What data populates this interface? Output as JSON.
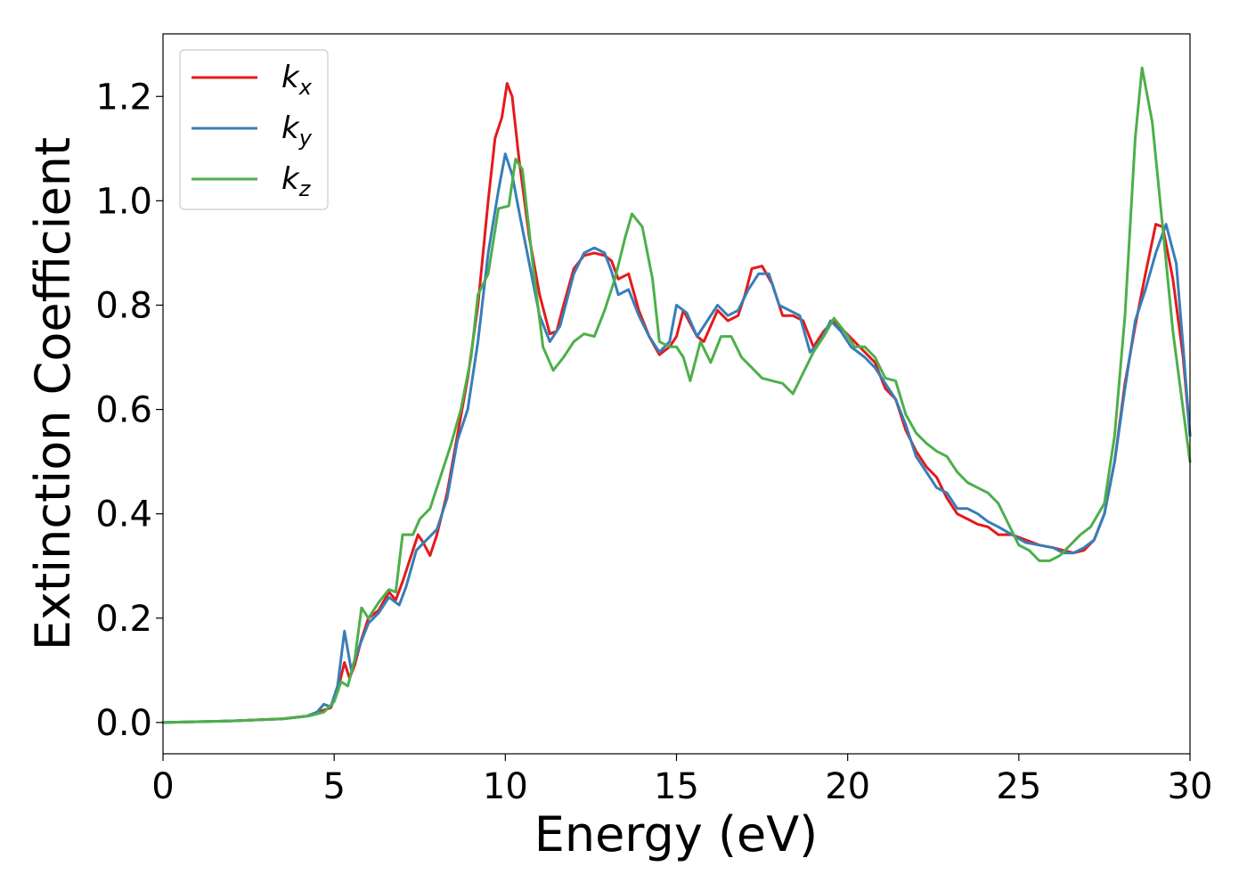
{
  "chart_data": {
    "type": "line",
    "title": "",
    "xlabel": "Energy (eV)",
    "ylabel": "Extinction Coefficient",
    "xlim": [
      0,
      30
    ],
    "ylim": [
      -0.06,
      1.32
    ],
    "xticks": [
      0,
      5,
      10,
      15,
      20,
      25,
      30
    ],
    "xtick_labels": [
      "0",
      "5",
      "10",
      "15",
      "20",
      "25",
      "30"
    ],
    "yticks": [
      0.0,
      0.2,
      0.4,
      0.6,
      0.8,
      1.0,
      1.2
    ],
    "ytick_labels": [
      "0.0",
      "0.2",
      "0.4",
      "0.6",
      "0.8",
      "1.0",
      "1.2"
    ],
    "grid": false,
    "legend_position": "top-left",
    "series": [
      {
        "name": "k",
        "subscript": "x",
        "color": "#e41a1c",
        "points": [
          [
            0,
            0.0
          ],
          [
            2,
            0.003
          ],
          [
            3.5,
            0.007
          ],
          [
            4.2,
            0.012
          ],
          [
            4.6,
            0.022
          ],
          [
            4.9,
            0.028
          ],
          [
            5.1,
            0.06
          ],
          [
            5.3,
            0.115
          ],
          [
            5.45,
            0.085
          ],
          [
            5.6,
            0.11
          ],
          [
            5.8,
            0.16
          ],
          [
            6.0,
            0.2
          ],
          [
            6.3,
            0.215
          ],
          [
            6.6,
            0.25
          ],
          [
            6.8,
            0.235
          ],
          [
            7.0,
            0.27
          ],
          [
            7.2,
            0.31
          ],
          [
            7.45,
            0.36
          ],
          [
            7.6,
            0.345
          ],
          [
            7.8,
            0.32
          ],
          [
            8.0,
            0.36
          ],
          [
            8.3,
            0.44
          ],
          [
            8.6,
            0.55
          ],
          [
            8.9,
            0.66
          ],
          [
            9.2,
            0.8
          ],
          [
            9.5,
            1.0
          ],
          [
            9.7,
            1.12
          ],
          [
            9.9,
            1.16
          ],
          [
            10.05,
            1.225
          ],
          [
            10.2,
            1.2
          ],
          [
            10.4,
            1.08
          ],
          [
            10.7,
            0.93
          ],
          [
            11.0,
            0.82
          ],
          [
            11.3,
            0.745
          ],
          [
            11.5,
            0.75
          ],
          [
            11.7,
            0.8
          ],
          [
            12.0,
            0.87
          ],
          [
            12.3,
            0.895
          ],
          [
            12.6,
            0.9
          ],
          [
            12.9,
            0.895
          ],
          [
            13.1,
            0.885
          ],
          [
            13.3,
            0.85
          ],
          [
            13.6,
            0.86
          ],
          [
            13.9,
            0.79
          ],
          [
            14.2,
            0.74
          ],
          [
            14.5,
            0.705
          ],
          [
            14.8,
            0.72
          ],
          [
            15.0,
            0.74
          ],
          [
            15.2,
            0.79
          ],
          [
            15.4,
            0.765
          ],
          [
            15.6,
            0.74
          ],
          [
            15.8,
            0.73
          ],
          [
            16.0,
            0.76
          ],
          [
            16.2,
            0.79
          ],
          [
            16.5,
            0.77
          ],
          [
            16.8,
            0.78
          ],
          [
            17.0,
            0.82
          ],
          [
            17.2,
            0.87
          ],
          [
            17.5,
            0.875
          ],
          [
            17.8,
            0.84
          ],
          [
            18.1,
            0.78
          ],
          [
            18.4,
            0.78
          ],
          [
            18.7,
            0.77
          ],
          [
            19.0,
            0.72
          ],
          [
            19.3,
            0.75
          ],
          [
            19.6,
            0.77
          ],
          [
            19.9,
            0.75
          ],
          [
            20.2,
            0.73
          ],
          [
            20.5,
            0.71
          ],
          [
            20.8,
            0.69
          ],
          [
            21.1,
            0.64
          ],
          [
            21.4,
            0.62
          ],
          [
            21.7,
            0.56
          ],
          [
            22.0,
            0.52
          ],
          [
            22.3,
            0.49
          ],
          [
            22.6,
            0.47
          ],
          [
            22.9,
            0.43
          ],
          [
            23.2,
            0.4
          ],
          [
            23.5,
            0.39
          ],
          [
            23.8,
            0.38
          ],
          [
            24.1,
            0.375
          ],
          [
            24.4,
            0.36
          ],
          [
            24.8,
            0.36
          ],
          [
            25.2,
            0.35
          ],
          [
            25.6,
            0.34
          ],
          [
            26.0,
            0.335
          ],
          [
            26.3,
            0.33
          ],
          [
            26.6,
            0.325
          ],
          [
            26.9,
            0.33
          ],
          [
            27.2,
            0.35
          ],
          [
            27.5,
            0.4
          ],
          [
            27.8,
            0.5
          ],
          [
            28.1,
            0.65
          ],
          [
            28.4,
            0.76
          ],
          [
            28.7,
            0.86
          ],
          [
            29.0,
            0.955
          ],
          [
            29.2,
            0.95
          ],
          [
            29.5,
            0.85
          ],
          [
            29.8,
            0.7
          ],
          [
            30.0,
            0.55
          ]
        ]
      },
      {
        "name": "k",
        "subscript": "y",
        "color": "#377eb8",
        "points": [
          [
            0,
            0.0
          ],
          [
            2,
            0.003
          ],
          [
            3.5,
            0.007
          ],
          [
            4.2,
            0.012
          ],
          [
            4.5,
            0.02
          ],
          [
            4.7,
            0.035
          ],
          [
            4.9,
            0.03
          ],
          [
            5.1,
            0.07
          ],
          [
            5.3,
            0.175
          ],
          [
            5.5,
            0.1
          ],
          [
            5.7,
            0.14
          ],
          [
            6.0,
            0.19
          ],
          [
            6.3,
            0.21
          ],
          [
            6.6,
            0.24
          ],
          [
            6.9,
            0.225
          ],
          [
            7.1,
            0.26
          ],
          [
            7.4,
            0.33
          ],
          [
            7.7,
            0.35
          ],
          [
            8.0,
            0.37
          ],
          [
            8.3,
            0.43
          ],
          [
            8.6,
            0.54
          ],
          [
            8.9,
            0.6
          ],
          [
            9.2,
            0.73
          ],
          [
            9.5,
            0.9
          ],
          [
            9.8,
            1.02
          ],
          [
            10.0,
            1.09
          ],
          [
            10.2,
            1.05
          ],
          [
            10.4,
            0.98
          ],
          [
            10.7,
            0.88
          ],
          [
            11.0,
            0.78
          ],
          [
            11.3,
            0.73
          ],
          [
            11.6,
            0.76
          ],
          [
            12.0,
            0.86
          ],
          [
            12.3,
            0.9
          ],
          [
            12.6,
            0.91
          ],
          [
            12.9,
            0.9
          ],
          [
            13.1,
            0.865
          ],
          [
            13.3,
            0.82
          ],
          [
            13.6,
            0.83
          ],
          [
            13.9,
            0.78
          ],
          [
            14.2,
            0.74
          ],
          [
            14.5,
            0.71
          ],
          [
            14.8,
            0.73
          ],
          [
            15.0,
            0.8
          ],
          [
            15.3,
            0.785
          ],
          [
            15.6,
            0.74
          ],
          [
            15.9,
            0.77
          ],
          [
            16.2,
            0.8
          ],
          [
            16.5,
            0.78
          ],
          [
            16.8,
            0.79
          ],
          [
            17.1,
            0.83
          ],
          [
            17.4,
            0.86
          ],
          [
            17.7,
            0.86
          ],
          [
            18.0,
            0.8
          ],
          [
            18.3,
            0.79
          ],
          [
            18.6,
            0.78
          ],
          [
            18.9,
            0.71
          ],
          [
            19.2,
            0.73
          ],
          [
            19.5,
            0.77
          ],
          [
            19.8,
            0.75
          ],
          [
            20.1,
            0.72
          ],
          [
            20.5,
            0.7
          ],
          [
            20.8,
            0.68
          ],
          [
            21.1,
            0.65
          ],
          [
            21.4,
            0.62
          ],
          [
            21.7,
            0.57
          ],
          [
            22.0,
            0.51
          ],
          [
            22.3,
            0.48
          ],
          [
            22.6,
            0.45
          ],
          [
            22.9,
            0.44
          ],
          [
            23.2,
            0.41
          ],
          [
            23.5,
            0.41
          ],
          [
            23.8,
            0.4
          ],
          [
            24.1,
            0.385
          ],
          [
            24.4,
            0.375
          ],
          [
            24.8,
            0.36
          ],
          [
            25.2,
            0.345
          ],
          [
            25.6,
            0.34
          ],
          [
            26.0,
            0.335
          ],
          [
            26.3,
            0.325
          ],
          [
            26.6,
            0.325
          ],
          [
            26.9,
            0.335
          ],
          [
            27.2,
            0.35
          ],
          [
            27.5,
            0.4
          ],
          [
            27.8,
            0.5
          ],
          [
            28.1,
            0.64
          ],
          [
            28.4,
            0.77
          ],
          [
            28.7,
            0.83
          ],
          [
            29.0,
            0.9
          ],
          [
            29.3,
            0.955
          ],
          [
            29.6,
            0.88
          ],
          [
            29.8,
            0.72
          ],
          [
            30.0,
            0.55
          ]
        ]
      },
      {
        "name": "k",
        "subscript": "z",
        "color": "#4daf4a",
        "points": [
          [
            0,
            0.0
          ],
          [
            2,
            0.003
          ],
          [
            3.5,
            0.007
          ],
          [
            4.3,
            0.013
          ],
          [
            4.7,
            0.02
          ],
          [
            5.0,
            0.04
          ],
          [
            5.2,
            0.078
          ],
          [
            5.4,
            0.07
          ],
          [
            5.6,
            0.12
          ],
          [
            5.8,
            0.22
          ],
          [
            6.0,
            0.2
          ],
          [
            6.3,
            0.23
          ],
          [
            6.6,
            0.255
          ],
          [
            6.8,
            0.25
          ],
          [
            7.0,
            0.36
          ],
          [
            7.3,
            0.36
          ],
          [
            7.5,
            0.39
          ],
          [
            7.8,
            0.41
          ],
          [
            8.1,
            0.47
          ],
          [
            8.4,
            0.53
          ],
          [
            8.7,
            0.6
          ],
          [
            9.0,
            0.7
          ],
          [
            9.2,
            0.82
          ],
          [
            9.5,
            0.86
          ],
          [
            9.8,
            0.985
          ],
          [
            10.1,
            0.99
          ],
          [
            10.3,
            1.08
          ],
          [
            10.5,
            1.06
          ],
          [
            10.8,
            0.88
          ],
          [
            11.1,
            0.72
          ],
          [
            11.4,
            0.675
          ],
          [
            11.7,
            0.7
          ],
          [
            12.0,
            0.73
          ],
          [
            12.3,
            0.745
          ],
          [
            12.6,
            0.74
          ],
          [
            12.9,
            0.79
          ],
          [
            13.2,
            0.85
          ],
          [
            13.5,
            0.93
          ],
          [
            13.7,
            0.975
          ],
          [
            14.0,
            0.95
          ],
          [
            14.3,
            0.85
          ],
          [
            14.5,
            0.73
          ],
          [
            14.8,
            0.72
          ],
          [
            15.0,
            0.72
          ],
          [
            15.2,
            0.7
          ],
          [
            15.4,
            0.655
          ],
          [
            15.7,
            0.73
          ],
          [
            16.0,
            0.69
          ],
          [
            16.3,
            0.74
          ],
          [
            16.6,
            0.74
          ],
          [
            16.9,
            0.7
          ],
          [
            17.2,
            0.68
          ],
          [
            17.5,
            0.66
          ],
          [
            17.8,
            0.655
          ],
          [
            18.1,
            0.65
          ],
          [
            18.4,
            0.63
          ],
          [
            18.7,
            0.67
          ],
          [
            19.0,
            0.71
          ],
          [
            19.3,
            0.74
          ],
          [
            19.6,
            0.775
          ],
          [
            19.9,
            0.75
          ],
          [
            20.2,
            0.72
          ],
          [
            20.5,
            0.72
          ],
          [
            20.8,
            0.7
          ],
          [
            21.1,
            0.66
          ],
          [
            21.4,
            0.655
          ],
          [
            21.7,
            0.59
          ],
          [
            22.0,
            0.555
          ],
          [
            22.3,
            0.535
          ],
          [
            22.6,
            0.52
          ],
          [
            22.9,
            0.51
          ],
          [
            23.2,
            0.48
          ],
          [
            23.5,
            0.46
          ],
          [
            23.8,
            0.45
          ],
          [
            24.1,
            0.44
          ],
          [
            24.4,
            0.42
          ],
          [
            24.7,
            0.38
          ],
          [
            25.0,
            0.34
          ],
          [
            25.3,
            0.33
          ],
          [
            25.6,
            0.31
          ],
          [
            25.9,
            0.31
          ],
          [
            26.2,
            0.32
          ],
          [
            26.5,
            0.34
          ],
          [
            26.8,
            0.36
          ],
          [
            27.1,
            0.375
          ],
          [
            27.5,
            0.42
          ],
          [
            27.8,
            0.55
          ],
          [
            28.1,
            0.78
          ],
          [
            28.4,
            1.12
          ],
          [
            28.6,
            1.255
          ],
          [
            28.9,
            1.15
          ],
          [
            29.2,
            0.95
          ],
          [
            29.5,
            0.75
          ],
          [
            29.8,
            0.6
          ],
          [
            30.0,
            0.5
          ]
        ]
      }
    ]
  }
}
